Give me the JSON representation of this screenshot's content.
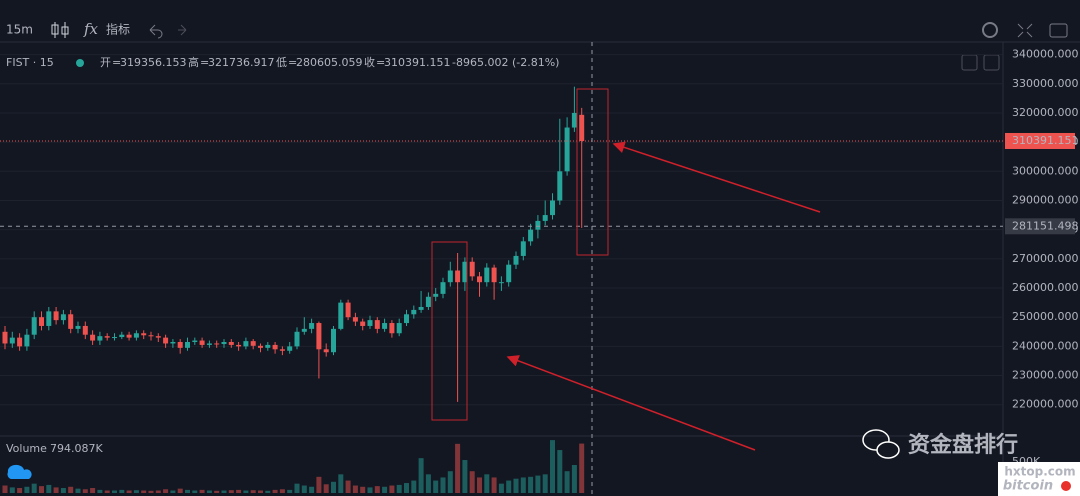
{
  "toolbar": {
    "interval": "15m",
    "indicators": "指标"
  },
  "header": {
    "symbol": "FIST · 15",
    "separator": "=",
    "fields": [
      {
        "label": "开",
        "value": "319356.153"
      },
      {
        "label": "高",
        "value": "321736.917"
      },
      {
        "label": "低",
        "value": "280605.059"
      },
      {
        "label": "收",
        "value": "310391.151"
      }
    ],
    "change": "-8965.002 (-2.81%)"
  },
  "volume_legend": {
    "label": "Volume",
    "value": "794.087K"
  },
  "watermark": {
    "title": "资金盘排行",
    "site": "hxtop.com",
    "brand": "bitcoin"
  },
  "chart_data": {
    "type": "candlestick",
    "open": [
      245000,
      241000,
      243000,
      240000,
      244000,
      250000,
      247000,
      252000,
      249000,
      251000,
      246000,
      247000,
      244000,
      242000,
      243500,
      243000,
      243200,
      244000,
      243000,
      244500,
      243800,
      243500,
      243000,
      241000,
      241500,
      239500,
      241500,
      242000,
      240500,
      241000,
      240800,
      241500,
      240500,
      240000,
      241800,
      240200,
      239500,
      240500,
      239000,
      238500,
      240000,
      245000,
      246000,
      248000,
      239000,
      238000,
      246000,
      255000,
      250000,
      248500,
      247000,
      249000,
      246000,
      248000,
      244500,
      248000,
      251000,
      252500,
      253500,
      257000,
      258000,
      262000,
      266000,
      262000,
      269000,
      264000,
      262000,
      267000,
      262000,
      262000,
      268000,
      271000,
      276000,
      280000,
      283000,
      285000,
      290000,
      300000,
      315000,
      319356.153
    ],
    "high": [
      247000,
      245000,
      244500,
      246000,
      252000,
      252000,
      253500,
      253500,
      252500,
      252500,
      248500,
      248500,
      245500,
      245000,
      244500,
      244500,
      245000,
      245000,
      245500,
      245500,
      245000,
      244500,
      244000,
      242500,
      242500,
      243000,
      243000,
      243000,
      242000,
      242000,
      242500,
      242500,
      241500,
      243000,
      242500,
      241000,
      241500,
      241500,
      240000,
      241500,
      246500,
      250000,
      249500,
      248500,
      241000,
      247000,
      256000,
      256000,
      251500,
      249500,
      250500,
      250000,
      249500,
      249000,
      249500,
      252500,
      254000,
      259000,
      258500,
      260000,
      263500,
      269000,
      272000,
      270500,
      270500,
      265500,
      268500,
      268000,
      264000,
      269500,
      272500,
      277500,
      282000,
      285000,
      290000,
      292500,
      318000,
      318500,
      329000,
      321736.917
    ],
    "low": [
      239000,
      239500,
      238500,
      238500,
      242500,
      245500,
      245500,
      247500,
      247500,
      244500,
      244500,
      242500,
      240500,
      240500,
      242000,
      242000,
      242500,
      242000,
      242000,
      242500,
      242000,
      241500,
      239500,
      239500,
      237500,
      238500,
      240500,
      239500,
      239500,
      239500,
      239500,
      239500,
      238500,
      239000,
      239000,
      238000,
      238500,
      237500,
      237000,
      237500,
      239000,
      244000,
      244500,
      229000,
      236500,
      237000,
      245500,
      249000,
      247000,
      245500,
      246000,
      244500,
      245000,
      243000,
      243500,
      247000,
      249500,
      251500,
      252500,
      255500,
      256500,
      260500,
      221000,
      259000,
      262500,
      257000,
      260500,
      256000,
      259000,
      260500,
      266500,
      269500,
      274500,
      277000,
      281500,
      283500,
      288500,
      298500,
      313500,
      280605.059
    ],
    "close": [
      241000,
      243000,
      240000,
      244000,
      250000,
      247000,
      252000,
      249000,
      251000,
      246000,
      247000,
      244000,
      242000,
      243500,
      243000,
      243200,
      244000,
      243000,
      244500,
      243800,
      243500,
      243000,
      241000,
      241500,
      239500,
      241500,
      242000,
      240500,
      241000,
      240800,
      241500,
      240500,
      240000,
      241800,
      240200,
      239500,
      240500,
      239000,
      238500,
      240000,
      245000,
      246000,
      248000,
      239000,
      238000,
      246000,
      255000,
      250000,
      248500,
      247000,
      249000,
      246000,
      248000,
      244500,
      248000,
      251000,
      252500,
      253500,
      257000,
      258000,
      262000,
      266000,
      262000,
      269000,
      264000,
      262000,
      267000,
      262000,
      262000,
      268000,
      271000,
      276000,
      280000,
      283000,
      285000,
      290000,
      300000,
      315000,
      320000,
      310391.151
    ],
    "volume": [
      120000,
      90000,
      80000,
      100000,
      150000,
      110000,
      130000,
      90000,
      80000,
      100000,
      70000,
      60000,
      80000,
      50000,
      40000,
      40000,
      50000,
      40000,
      45000,
      40000,
      35000,
      40000,
      60000,
      40000,
      70000,
      50000,
      40000,
      50000,
      40000,
      35000,
      40000,
      45000,
      50000,
      40000,
      45000,
      40000,
      35000,
      50000,
      60000,
      50000,
      150000,
      120000,
      100000,
      260000,
      140000,
      180000,
      300000,
      200000,
      120000,
      100000,
      90000,
      110000,
      100000,
      120000,
      130000,
      160000,
      200000,
      560000,
      300000,
      200000,
      250000,
      350000,
      790000,
      530000,
      350000,
      250000,
      300000,
      250000,
      150000,
      200000,
      230000,
      250000,
      260000,
      280000,
      300000,
      850000,
      690000,
      350000,
      450000,
      794087
    ],
    "up_color": "#26a69a",
    "down_color": "#ef5350",
    "ylim": [
      211000,
      345000
    ],
    "yticks": [
      {
        "value": 340000,
        "label": "340000.000"
      },
      {
        "value": 330000,
        "label": "330000.000"
      },
      {
        "value": 320000,
        "label": "320000.000"
      },
      {
        "value": 310000,
        "label": "310000.000"
      },
      {
        "value": 300000,
        "label": "300000.000"
      },
      {
        "value": 290000,
        "label": "290000.000"
      },
      {
        "value": 280000,
        "label": "280000.000"
      },
      {
        "value": 270000,
        "label": "270000.000"
      },
      {
        "value": 260000,
        "label": "260000.000"
      },
      {
        "value": 250000,
        "label": "250000.000"
      },
      {
        "value": 240000,
        "label": "240000.000"
      },
      {
        "value": 230000,
        "label": "230000.000"
      },
      {
        "value": 220000,
        "label": "220000.000"
      }
    ],
    "volume_ylim": [
      0,
      900000
    ],
    "volume_yticks": [
      {
        "value": 500000,
        "label": "500K"
      }
    ],
    "last_price": 310391.151,
    "crosshair_price": 281151.498,
    "grid": true
  }
}
